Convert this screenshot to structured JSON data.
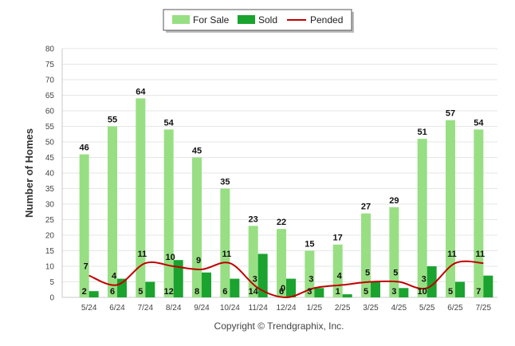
{
  "chart_data": {
    "type": "bar",
    "categories": [
      "5/24",
      "6/24",
      "7/24",
      "8/24",
      "9/24",
      "10/24",
      "11/24",
      "12/24",
      "1/25",
      "2/25",
      "3/25",
      "4/25",
      "5/25",
      "6/25",
      "7/25"
    ],
    "series": [
      {
        "name": "For Sale",
        "type": "bar",
        "color": "#98df84",
        "values": [
          46,
          55,
          64,
          54,
          45,
          35,
          23,
          22,
          15,
          17,
          27,
          29,
          51,
          57,
          54
        ]
      },
      {
        "name": "Sold",
        "type": "bar",
        "color": "#1aa32f",
        "values": [
          2,
          6,
          5,
          12,
          8,
          6,
          14,
          6,
          3,
          1,
          5,
          3,
          10,
          5,
          7
        ]
      },
      {
        "name": "Pended",
        "type": "line",
        "color": "#c00000",
        "values": [
          7,
          4,
          11,
          10,
          9,
          11,
          3,
          0,
          3,
          4,
          5,
          5,
          3,
          11,
          11
        ]
      }
    ],
    "ylabel": "Number of Homes",
    "ylim": [
      0,
      80
    ],
    "yticks": [
      0,
      5,
      10,
      15,
      20,
      25,
      30,
      35,
      40,
      45,
      50,
      55,
      60,
      65,
      70,
      75,
      80
    ],
    "grid": true,
    "legend": "top-center"
  },
  "footer": {
    "copyright": "Copyright © Trendgraphix, Inc."
  }
}
